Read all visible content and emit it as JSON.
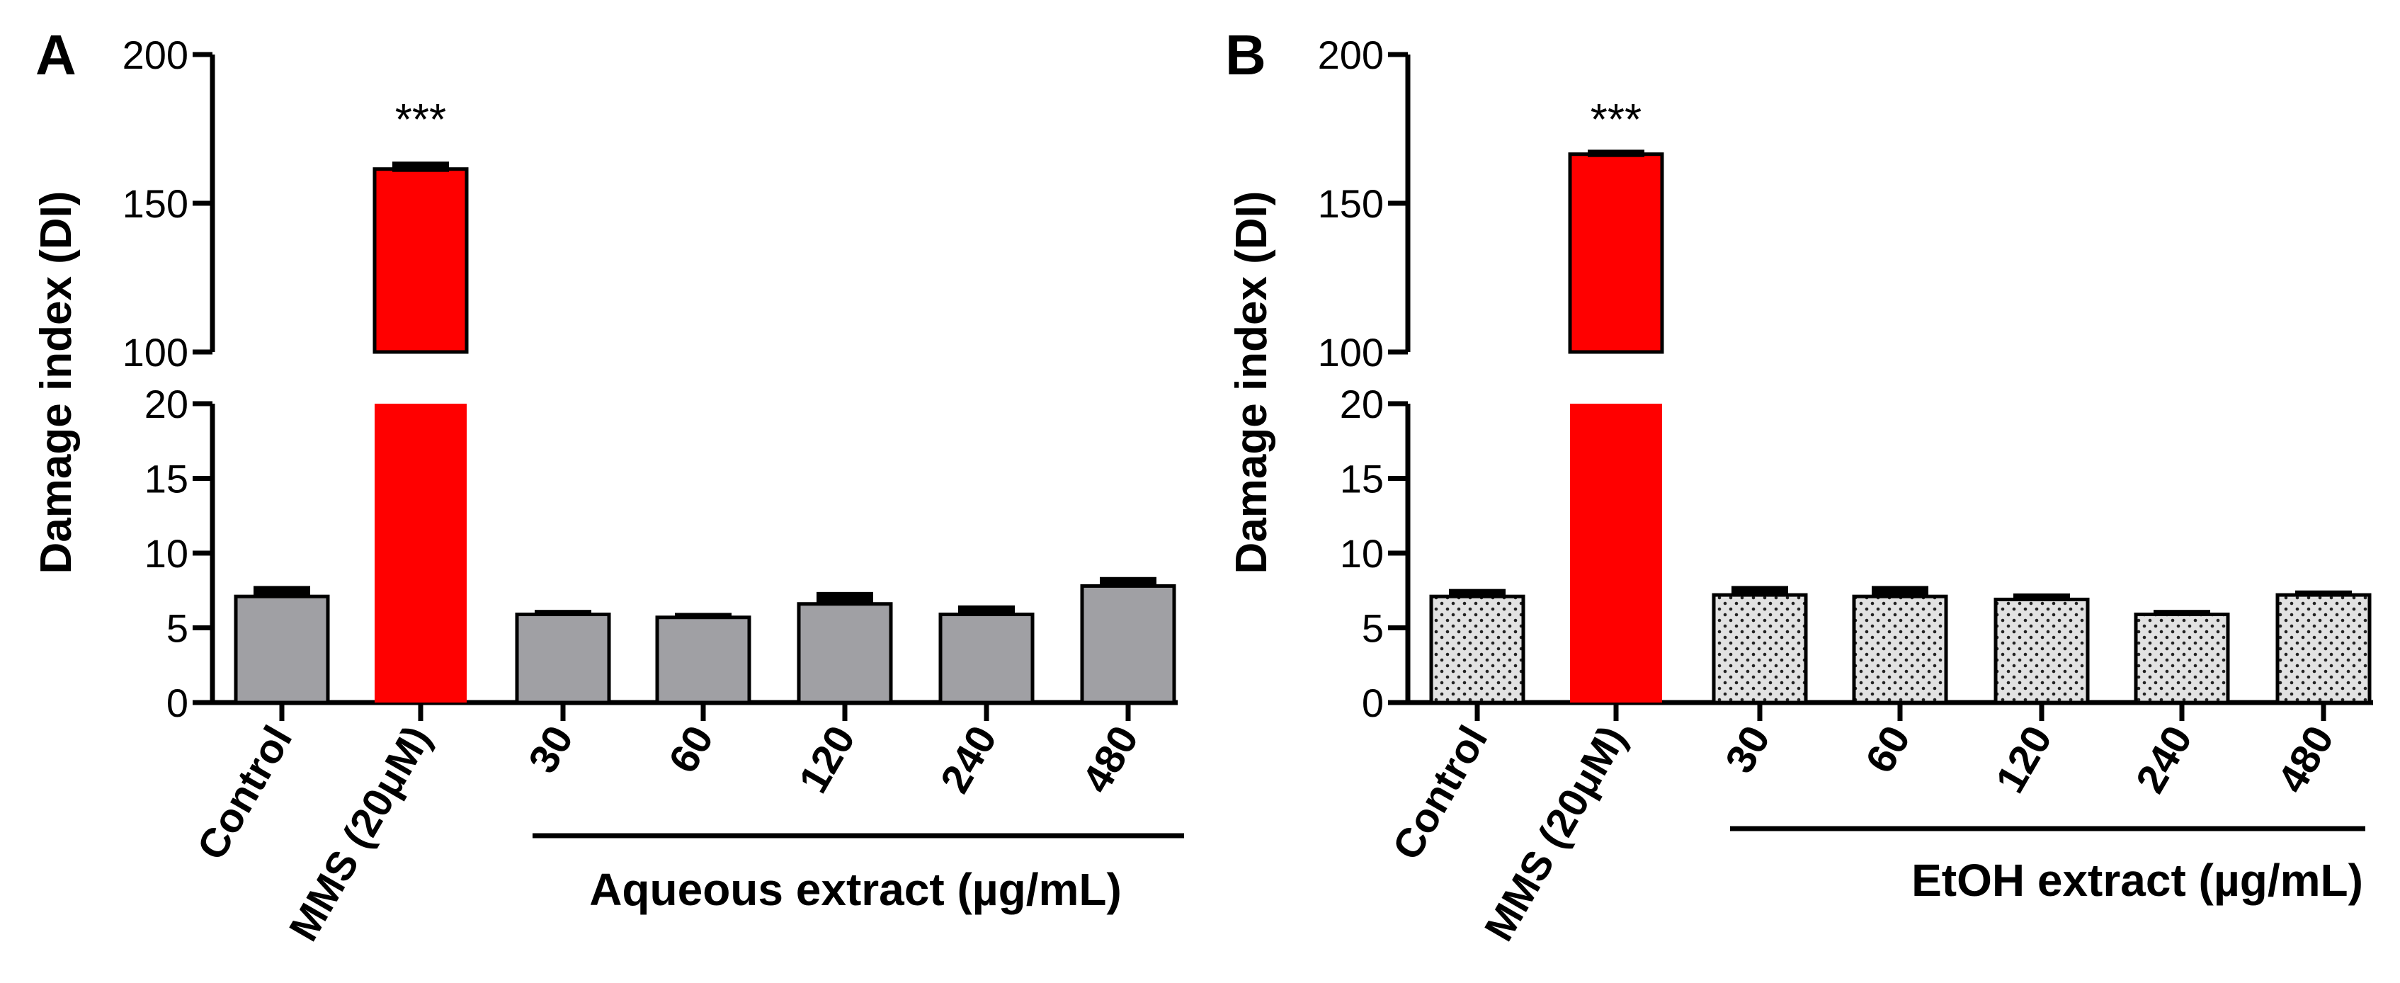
{
  "chart_data": [
    {
      "type": "bar",
      "panel_label": "A",
      "ylabel": "Damage index (DI)",
      "y_axis_break": {
        "lower_range": [
          0,
          20
        ],
        "upper_range": [
          100,
          200
        ]
      },
      "lower_ticks": [
        "0",
        "5",
        "10",
        "15",
        "20"
      ],
      "upper_ticks": [
        "100",
        "150",
        "200"
      ],
      "categories": [
        "Control",
        "MMS (20μM)",
        "30",
        "60",
        "120",
        "240",
        "480"
      ],
      "values": [
        7.1,
        161.5,
        5.9,
        5.7,
        6.6,
        5.9,
        7.8
      ],
      "errors": [
        0.7,
        2.5,
        0.3,
        0.3,
        0.8,
        0.6,
        0.6
      ],
      "annotations": [
        {
          "category": "MMS (20μM)",
          "text": "***"
        }
      ],
      "group_label": "Aqueous extract (µg/mL)",
      "bar_styles": [
        "solid-gray",
        "red",
        "solid-gray",
        "solid-gray",
        "solid-gray",
        "solid-gray",
        "solid-gray"
      ]
    },
    {
      "type": "bar",
      "panel_label": "B",
      "ylabel": "Damage index (DI)",
      "y_axis_break": {
        "lower_range": [
          0,
          20
        ],
        "upper_range": [
          100,
          200
        ]
      },
      "lower_ticks": [
        "0",
        "5",
        "10",
        "15",
        "20"
      ],
      "upper_ticks": [
        "100",
        "150",
        "200"
      ],
      "categories": [
        "Control",
        "MMS (20μM)",
        "30",
        "60",
        "120",
        "240",
        "480"
      ],
      "values": [
        7.1,
        166.5,
        7.2,
        7.1,
        6.9,
        5.9,
        7.2
      ],
      "errors": [
        0.5,
        1.5,
        0.6,
        0.7,
        0.4,
        0.3,
        0.3
      ],
      "annotations": [
        {
          "category": "MMS (20μM)",
          "text": "***"
        }
      ],
      "group_label": "EtOH extract (µg/mL)",
      "bar_styles": [
        "dotted",
        "red",
        "dotted",
        "dotted",
        "dotted",
        "dotted",
        "dotted"
      ]
    }
  ],
  "colors": {
    "red": "#ff0000",
    "gray": "#a0a0a4",
    "dotted_bg": "#e2e2e2",
    "axis": "#000000"
  }
}
